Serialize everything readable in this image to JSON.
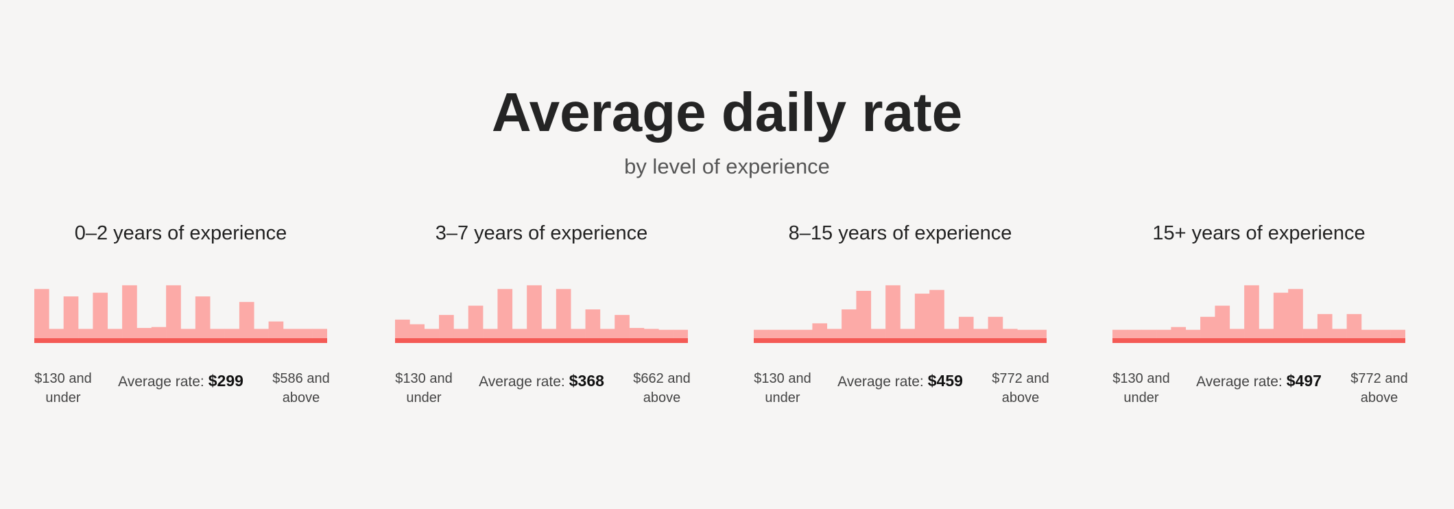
{
  "title": "Average daily rate",
  "subtitle": "by level of experience",
  "chart_data": [
    {
      "type": "bar",
      "title": "0–2 years of experience",
      "color": "#fcaaa7",
      "values": [
        56,
        13,
        48,
        13,
        52,
        13,
        60,
        14,
        15,
        60,
        13,
        48,
        13,
        13,
        42,
        13,
        21,
        13,
        13,
        13
      ],
      "low_label": "$130 and under",
      "high_label": "$586 and above",
      "average_label": "Average rate:",
      "average_value": "$299"
    },
    {
      "type": "bar",
      "title": "3–7 years of experience",
      "color": "#fcaaa7",
      "values": [
        23,
        18,
        13,
        28,
        13,
        38,
        13,
        56,
        13,
        60,
        13,
        56,
        13,
        34,
        13,
        28,
        14,
        13,
        12,
        12
      ],
      "low_label": "$130 and under",
      "high_label": "$662 and above",
      "average_label": "Average rate:",
      "average_value": "$368"
    },
    {
      "type": "bar",
      "title": "8–15 years of experience",
      "color": "#fcaaa7",
      "values": [
        12,
        12,
        12,
        12,
        19,
        13,
        34,
        54,
        13,
        60,
        13,
        51,
        55,
        13,
        26,
        13,
        26,
        13,
        12,
        12
      ],
      "low_label": "$130 and under",
      "high_label": "$772 and above",
      "average_label": "Average rate:",
      "average_value": "$459"
    },
    {
      "type": "bar",
      "title": "15+ years of experience",
      "color": "#fcaaa7",
      "values": [
        12,
        12,
        12,
        12,
        15,
        12,
        26,
        38,
        13,
        60,
        13,
        52,
        56,
        13,
        29,
        13,
        29,
        12,
        12,
        12
      ],
      "low_label": "$130 and under",
      "high_label": "$772 and above",
      "average_label": "Average rate:",
      "average_value": "$497"
    }
  ]
}
